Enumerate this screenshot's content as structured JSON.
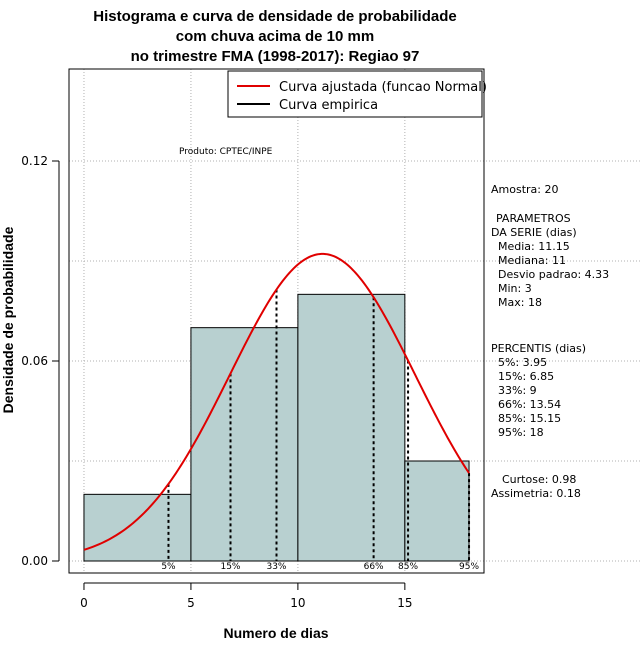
{
  "title_lines": [
    "Histograma e curva de densidade de probabilidade",
    "com chuva acima de 10 mm",
    "no trimestre FMA (1998-2017): Regiao 97"
  ],
  "legend": {
    "fitted_label": "Curva ajustada (funcao Normal)",
    "empirical_label": "Curva empirica",
    "fitted_color": "#e00000",
    "empirical_color": "#000000"
  },
  "product_label": "Produto: CPTEC/INPE",
  "side_panel": {
    "amostra": "Amostra: 20",
    "param_title_1": "PARAMETROS",
    "param_title_2": "DA SERIE (dias)",
    "media": "Media: 11.15",
    "mediana": "Mediana: 11",
    "desvio": "Desvio padrao: 4.33",
    "min": "Min: 3",
    "max": "Max: 18",
    "percentis_title": "PERCENTIS (dias)",
    "p5": "5%: 3.95",
    "p15": "15%: 6.85",
    "p33": "33%: 9",
    "p66": "66%: 13.54",
    "p85": "85%: 15.15",
    "p95": "95%: 18",
    "curtose": "Curtose: 0.98",
    "assimetria": "Assimetria: 0.18"
  },
  "chart_data": {
    "type": "bar",
    "subtype": "histogram with fitted normal density curve",
    "xlabel": "Numero de dias",
    "ylabel": "Densidade de probabilidade",
    "xlim": [
      -0.7,
      18.7
    ],
    "ylim": [
      -0.0036,
      0.1476
    ],
    "x_ticks": [
      0,
      5,
      10,
      15
    ],
    "x_tick_labels": [
      "0",
      "5",
      "10",
      "15"
    ],
    "y_ticks": [
      0.0,
      0.06,
      0.12
    ],
    "y_tick_labels": [
      "0.00",
      "0.06",
      "0.12"
    ],
    "grid": true,
    "bar_color": "#b8d0d0",
    "bins": [
      {
        "x0": 0,
        "x1": 5,
        "density": 0.02
      },
      {
        "x0": 5,
        "x1": 10,
        "density": 0.07
      },
      {
        "x0": 10,
        "x1": 15,
        "density": 0.08
      },
      {
        "x0": 15,
        "x1": 18,
        "density": 0.03
      }
    ],
    "normal_fit": {
      "mean": 11.15,
      "sd": 4.33,
      "x_from": 0,
      "x_to": 18
    },
    "percentile_markers": [
      {
        "label": "5%",
        "x": 3.95
      },
      {
        "label": "15%",
        "x": 6.85
      },
      {
        "label": "33%",
        "x": 9
      },
      {
        "label": "66%",
        "x": 13.54
      },
      {
        "label": "85%",
        "x": 15.15
      },
      {
        "label": "95%",
        "x": 18
      }
    ]
  }
}
